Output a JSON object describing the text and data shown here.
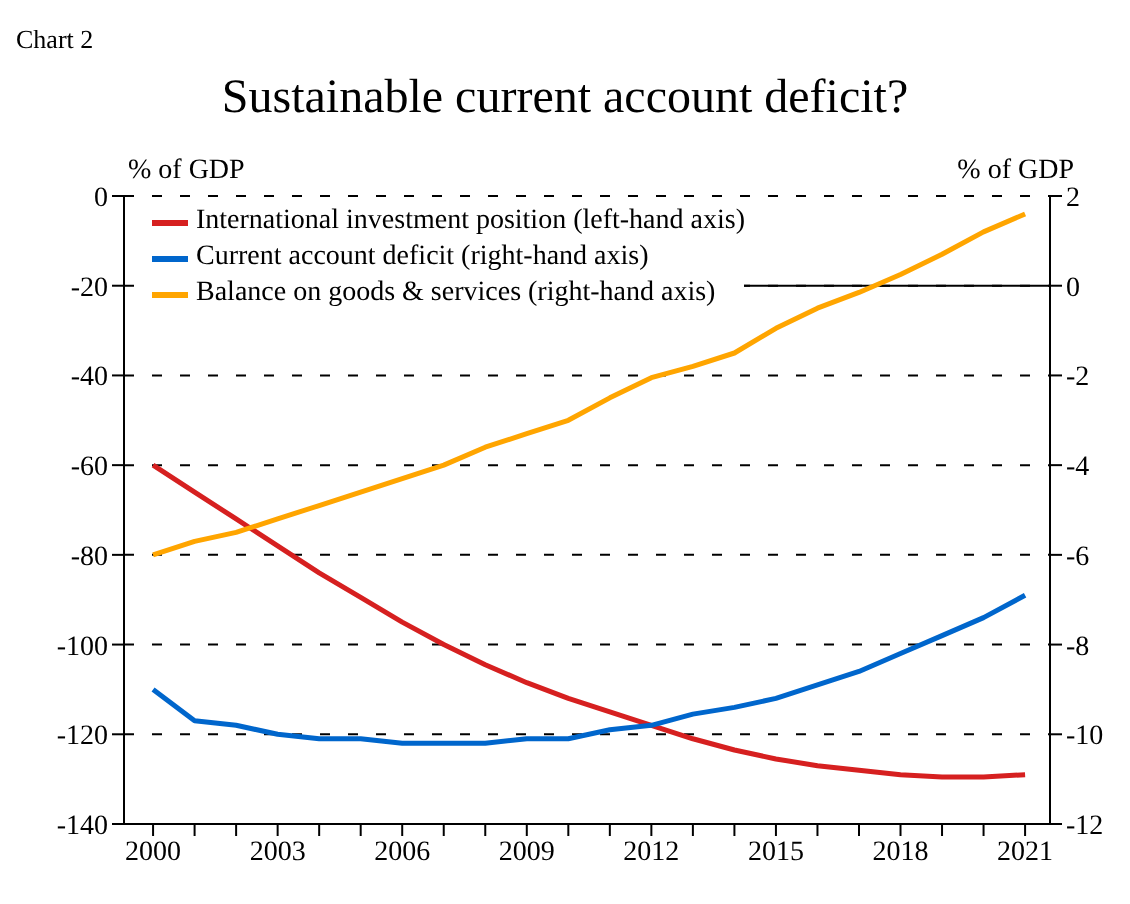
{
  "chart_data": {
    "type": "line",
    "title": "Sustainable current account deficit?",
    "ylabel": "% of GDP",
    "y2label": "% of GDP",
    "annotations": [
      "Chart 2"
    ],
    "x": [
      2000,
      2001,
      2002,
      2003,
      2004,
      2005,
      2006,
      2007,
      2008,
      2009,
      2010,
      2011,
      2012,
      2013,
      2014,
      2015,
      2016,
      2017,
      2018,
      2019,
      2020,
      2021
    ],
    "series": [
      {
        "name": "International investment position (left-hand axis)",
        "color": "#d62020",
        "values": [
          -60,
          -66,
          -72,
          -78,
          -84,
          -89.5,
          -95,
          -100,
          -104.5,
          -108.5,
          -112,
          -115,
          -118,
          -121,
          -123.5,
          -125.5,
          -127,
          -128,
          -129,
          -129.5,
          -129.5,
          -129
        ]
      },
      {
        "name": "Current account deficit (right-hand axis)",
        "color": "#0066cc",
        "axis": "y2",
        "values": [
          -9.0,
          -9.7,
          -9.8,
          -10.0,
          -10.1,
          -10.1,
          -10.2,
          -10.2,
          -10.2,
          -10.1,
          -10.1,
          -9.9,
          -9.8,
          -9.55,
          -9.4,
          -9.2,
          -8.9,
          -8.6,
          -8.2,
          -7.8,
          -7.4,
          -6.9
        ]
      },
      {
        "name": "Balance on goods & services (right-hand axis)",
        "color": "#ffa500",
        "axis": "y2",
        "values": [
          -6.0,
          -5.7,
          -5.5,
          -5.2,
          -4.9,
          -4.6,
          -4.3,
          -4.0,
          -3.6,
          -3.3,
          -3.0,
          -2.5,
          -2.05,
          -1.8,
          -1.5,
          -0.95,
          -0.5,
          -0.15,
          0.25,
          0.7,
          1.2,
          1.6
        ]
      }
    ],
    "xlim": [
      1999.3,
      2021.6
    ],
    "xticks": [
      2000,
      {
        "value": 2001,
        "label": null
      },
      {
        "value": 2002,
        "label": null
      },
      2003,
      {
        "value": 2004,
        "label": null
      },
      {
        "value": 2005,
        "label": null
      },
      2006,
      {
        "value": 2007,
        "label": null
      },
      {
        "value": 2008,
        "label": null
      },
      2009,
      {
        "value": 2010,
        "label": null
      },
      {
        "value": 2011,
        "label": null
      },
      2012,
      {
        "value": 2013,
        "label": null
      },
      {
        "value": 2014,
        "label": null
      },
      2015,
      {
        "value": 2016,
        "label": null
      },
      {
        "value": 2017,
        "label": null
      },
      2018,
      {
        "value": 2019,
        "label": null
      },
      {
        "value": 2020,
        "label": null
      },
      2021
    ],
    "ylim": [
      -140,
      0
    ],
    "yticks": [
      -140,
      -120,
      -100,
      -80,
      -60,
      -40,
      -20,
      0
    ],
    "y2lim": [
      -12,
      2
    ],
    "y2ticks": [
      -12,
      -10,
      -8,
      -6,
      -4,
      -2,
      0,
      2
    ],
    "ref_lines": [
      {
        "axis": "y2",
        "value": 0,
        "color": "#000000",
        "line_style": "solid"
      }
    ],
    "grid": "y",
    "legend": "top left",
    "marker": "none",
    "line_style": "solid"
  }
}
